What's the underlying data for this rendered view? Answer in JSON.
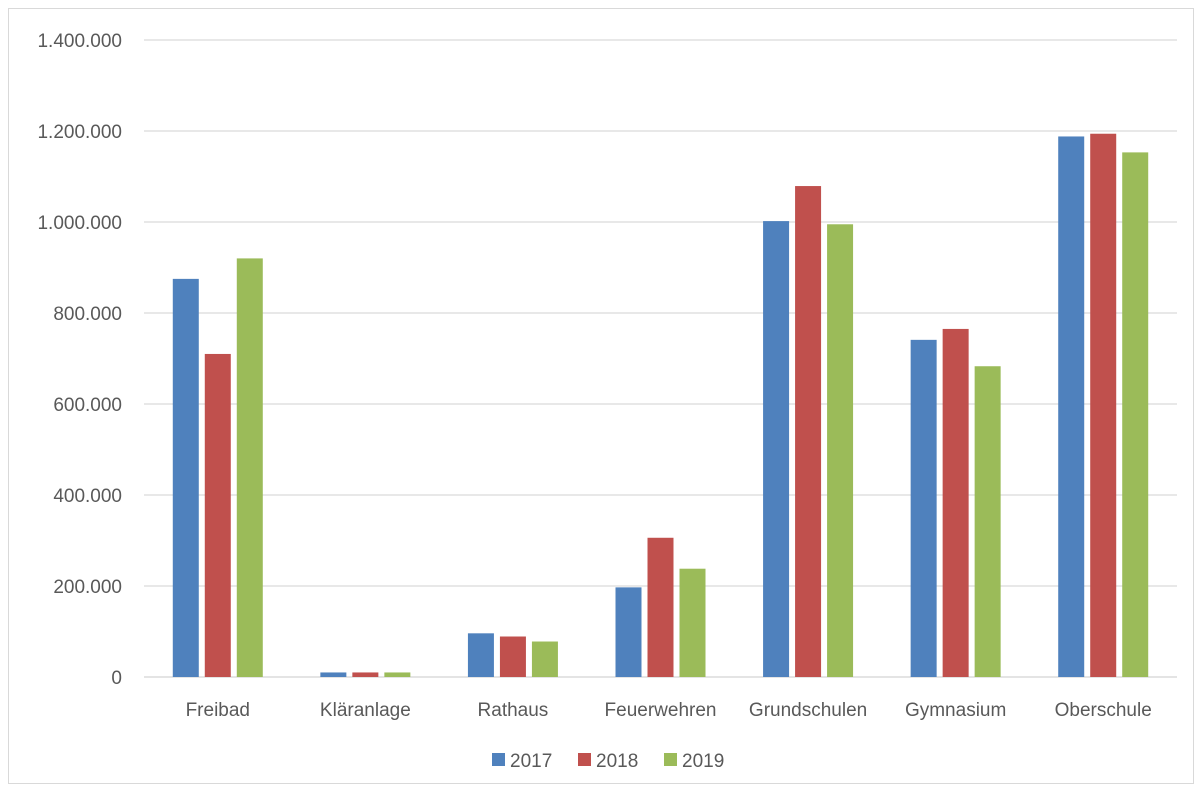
{
  "chart_data": {
    "type": "bar",
    "title": "",
    "xlabel": "",
    "ylabel": "",
    "categories": [
      "Freibad",
      "Kläranlage",
      "Rathaus",
      "Feuerwehren",
      "Grundschulen",
      "Gymnasium",
      "Oberschule"
    ],
    "series": [
      {
        "name": "2017",
        "color": "#4f81bd",
        "values": [
          875000,
          10000,
          96000,
          197000,
          1002000,
          741000,
          1188000
        ]
      },
      {
        "name": "2018",
        "color": "#c0504d",
        "values": [
          710000,
          10000,
          89000,
          306000,
          1079000,
          765000,
          1194000
        ]
      },
      {
        "name": "2019",
        "color": "#9bbb59",
        "values": [
          920000,
          10000,
          78000,
          238000,
          995000,
          683000,
          1153000
        ]
      }
    ],
    "ylim": [
      0,
      1400000
    ],
    "yticks": [
      0,
      200000,
      400000,
      600000,
      800000,
      1000000,
      1200000,
      1400000
    ],
    "ytick_labels": [
      "0",
      "200.000",
      "400.000",
      "600.000",
      "800.000",
      "1.000.000",
      "1.200.000",
      "1.400.000"
    ],
    "grid": true,
    "legend_position": "bottom"
  }
}
